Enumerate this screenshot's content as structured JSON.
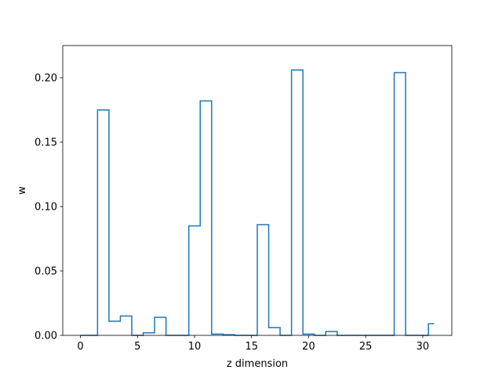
{
  "chart_data": {
    "type": "line",
    "drawstyle": "steps-mid",
    "xlabel": "z dimension",
    "ylabel": "w",
    "xlim": [
      -1.55,
      32.55
    ],
    "ylim": [
      0,
      0.225
    ],
    "xticks": [
      0,
      5,
      10,
      15,
      20,
      25,
      30
    ],
    "yticks": [
      0.0,
      0.05,
      0.1,
      0.15,
      0.2
    ],
    "ytick_labels": [
      "0.00",
      "0.05",
      "0.10",
      "0.15",
      "0.20"
    ],
    "grid": false,
    "color": "#1f77b4",
    "x": [
      0,
      1,
      2,
      3,
      4,
      5,
      6,
      7,
      8,
      9,
      10,
      11,
      12,
      13,
      14,
      15,
      16,
      17,
      18,
      19,
      20,
      21,
      22,
      23,
      24,
      25,
      26,
      27,
      28,
      29,
      30,
      31
    ],
    "values": [
      0.0,
      0.0,
      0.175,
      0.011,
      0.015,
      0.0,
      0.002,
      0.014,
      0.0,
      0.0,
      0.085,
      0.182,
      0.001,
      0.0005,
      0.0,
      0.0,
      0.086,
      0.006,
      0.0,
      0.206,
      0.001,
      0.0,
      0.003,
      0.0,
      0.0,
      0.0,
      0.0,
      0.0,
      0.204,
      0.0,
      0.0,
      0.009
    ]
  }
}
